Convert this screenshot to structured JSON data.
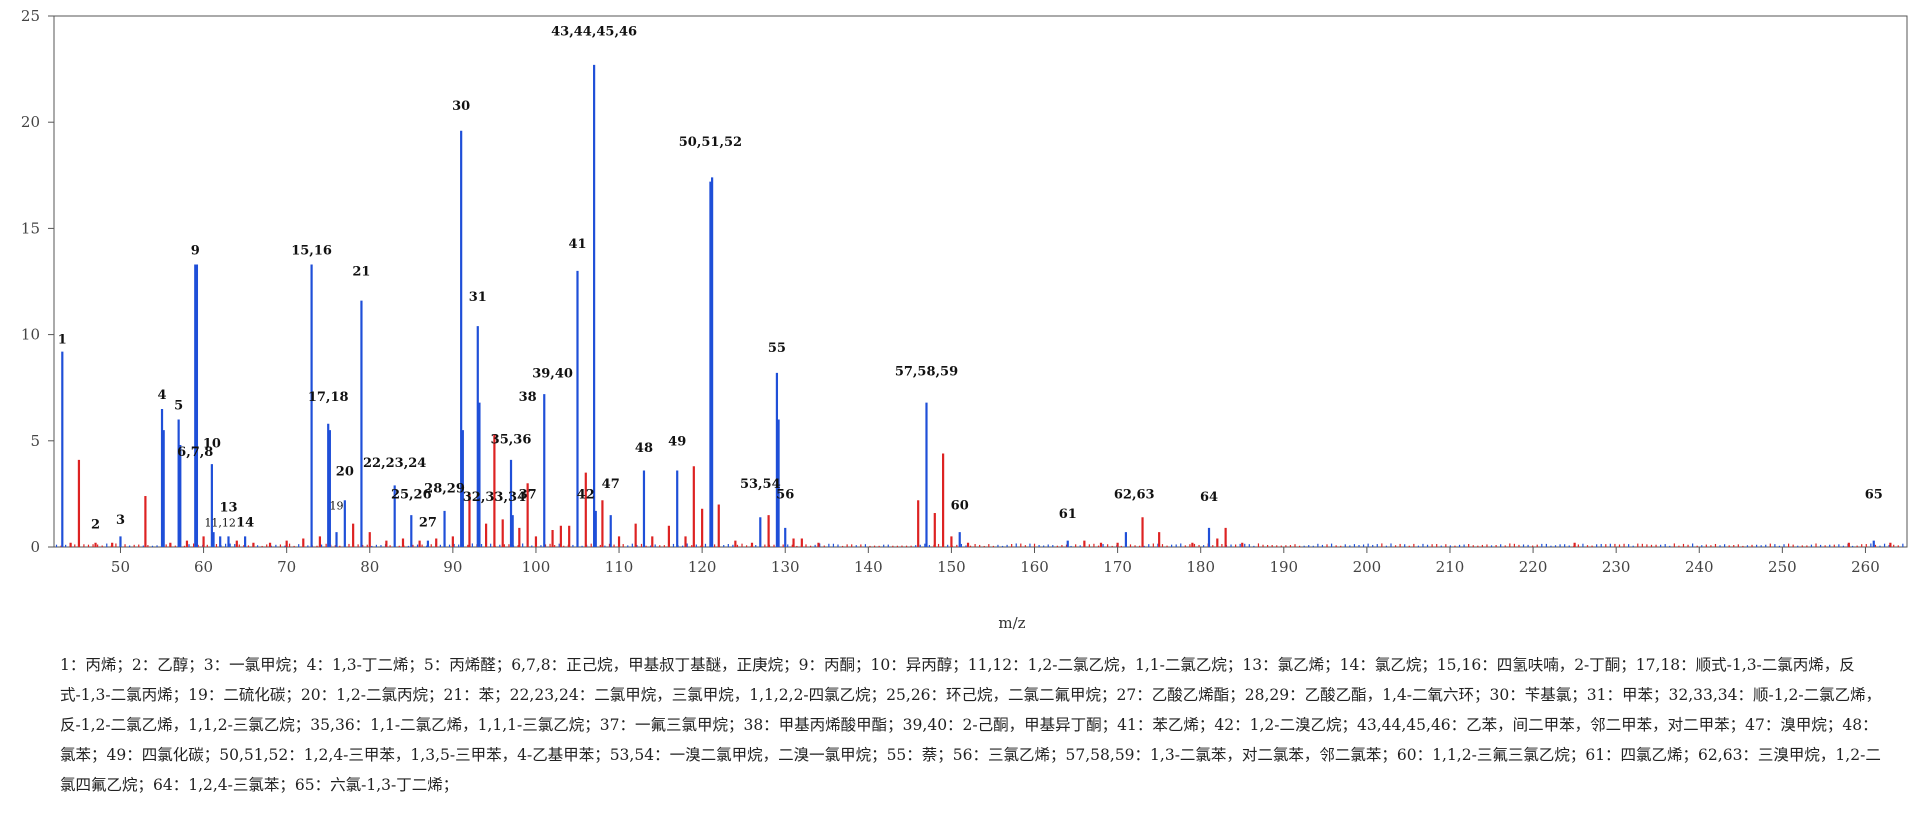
{
  "colors": {
    "blue": "#1f4fd8",
    "red": "#dd2222",
    "axis": "#555555",
    "text": "#111111"
  },
  "chart_data": {
    "type": "bar",
    "xlabel": "m/z",
    "ylabel": "",
    "xlim": [
      42,
      265
    ],
    "ylim": [
      0,
      25
    ],
    "x_ticks": [
      50,
      60,
      70,
      80,
      90,
      100,
      110,
      120,
      130,
      140,
      150,
      160,
      170,
      180,
      190,
      200,
      210,
      220,
      230,
      240,
      250,
      260
    ],
    "y_ticks": [
      0,
      5,
      10,
      15,
      20,
      25
    ],
    "grid": false,
    "series": [
      {
        "color": "#1f4fd8",
        "points": [
          [
            43,
            9.2
          ],
          [
            50,
            0.5
          ],
          [
            55,
            6.5
          ],
          [
            55.2,
            5.5
          ],
          [
            57,
            6.0
          ],
          [
            57.2,
            4.8
          ],
          [
            59,
            13.3
          ],
          [
            59.2,
            13.3
          ],
          [
            61,
            3.9
          ],
          [
            61.2,
            0.7
          ],
          [
            62,
            0.5
          ],
          [
            63,
            0.5
          ],
          [
            65,
            0.5
          ],
          [
            73,
            13.3
          ],
          [
            75,
            5.8
          ],
          [
            75.2,
            5.5
          ],
          [
            76,
            0.7
          ],
          [
            77,
            2.2
          ],
          [
            79,
            11.6
          ],
          [
            83,
            2.9
          ],
          [
            85,
            1.5
          ],
          [
            87,
            0.3
          ],
          [
            89,
            1.7
          ],
          [
            91,
            19.6
          ],
          [
            91.2,
            5.5
          ],
          [
            93,
            10.4
          ],
          [
            93.2,
            6.8
          ],
          [
            97,
            4.1
          ],
          [
            97.2,
            1.5
          ],
          [
            101,
            7.2
          ],
          [
            105,
            13.0
          ],
          [
            107,
            22.7
          ],
          [
            107.2,
            1.7
          ],
          [
            109,
            1.5
          ],
          [
            113,
            3.6
          ],
          [
            117,
            3.6
          ],
          [
            121,
            17.2
          ],
          [
            121.2,
            17.4
          ],
          [
            127,
            1.4
          ],
          [
            129,
            8.2
          ],
          [
            129.2,
            6.0
          ],
          [
            130,
            0.9
          ],
          [
            147,
            6.8
          ],
          [
            151,
            0.7
          ],
          [
            164,
            0.3
          ],
          [
            171,
            0.7
          ],
          [
            181,
            0.9
          ],
          [
            261,
            0.3
          ]
        ]
      },
      {
        "color": "#dd2222",
        "points": [
          [
            44,
            0.2
          ],
          [
            45,
            4.1
          ],
          [
            47,
            0.2
          ],
          [
            49,
            0.2
          ],
          [
            53,
            2.4
          ],
          [
            56,
            0.2
          ],
          [
            58,
            0.3
          ],
          [
            60,
            0.5
          ],
          [
            64,
            0.3
          ],
          [
            66,
            0.2
          ],
          [
            68,
            0.2
          ],
          [
            70,
            0.3
          ],
          [
            72,
            0.4
          ],
          [
            74,
            0.5
          ],
          [
            78,
            1.1
          ],
          [
            80,
            0.7
          ],
          [
            82,
            0.3
          ],
          [
            84,
            0.4
          ],
          [
            86,
            0.3
          ],
          [
            88,
            0.4
          ],
          [
            90,
            0.5
          ],
          [
            92,
            2.5
          ],
          [
            94,
            1.1
          ],
          [
            95,
            5.3
          ],
          [
            96,
            1.3
          ],
          [
            98,
            0.9
          ],
          [
            99,
            3.0
          ],
          [
            100,
            0.5
          ],
          [
            102,
            0.8
          ],
          [
            103,
            1.0
          ],
          [
            104,
            1.0
          ],
          [
            106,
            3.5
          ],
          [
            108,
            2.2
          ],
          [
            110,
            0.5
          ],
          [
            112,
            1.1
          ],
          [
            114,
            0.5
          ],
          [
            116,
            1.0
          ],
          [
            118,
            0.5
          ],
          [
            119,
            3.8
          ],
          [
            120,
            1.8
          ],
          [
            122,
            2.0
          ],
          [
            124,
            0.3
          ],
          [
            126,
            0.2
          ],
          [
            128,
            1.5
          ],
          [
            131,
            0.4
          ],
          [
            132,
            0.4
          ],
          [
            134,
            0.2
          ],
          [
            146,
            2.2
          ],
          [
            148,
            1.6
          ],
          [
            149,
            4.4
          ],
          [
            150,
            0.5
          ],
          [
            152,
            0.2
          ],
          [
            166,
            0.3
          ],
          [
            168,
            0.2
          ],
          [
            170,
            0.2
          ],
          [
            173,
            1.4
          ],
          [
            175,
            0.7
          ],
          [
            179,
            0.2
          ],
          [
            182,
            0.4
          ],
          [
            183,
            0.9
          ],
          [
            185,
            0.2
          ],
          [
            225,
            0.2
          ],
          [
            258,
            0.2
          ],
          [
            263,
            0.2
          ]
        ]
      }
    ],
    "annotations": [
      {
        "text": "1",
        "x": 43,
        "y": 9.2
      },
      {
        "text": "2",
        "x": 47,
        "y": 0.5
      },
      {
        "text": "3",
        "x": 50,
        "y": 0.7
      },
      {
        "text": "4",
        "x": 55,
        "y": 6.6
      },
      {
        "text": "5",
        "x": 57,
        "y": 6.1
      },
      {
        "text": "6,7,8",
        "x": 59,
        "y": 3.9
      },
      {
        "text": "9",
        "x": 59,
        "y": 13.4
      },
      {
        "text": "10",
        "x": 61,
        "y": 4.3
      },
      {
        "text": "11,12",
        "x": 62,
        "y": 0.6,
        "small": true
      },
      {
        "text": "13",
        "x": 63,
        "y": 1.3
      },
      {
        "text": "14",
        "x": 65,
        "y": 0.6
      },
      {
        "text": "15,16",
        "x": 73,
        "y": 13.4
      },
      {
        "text": "17,18",
        "x": 75,
        "y": 6.5
      },
      {
        "text": "19",
        "x": 76,
        "y": 1.4,
        "small": true
      },
      {
        "text": "20",
        "x": 77,
        "y": 3.0
      },
      {
        "text": "21",
        "x": 79,
        "y": 12.4
      },
      {
        "text": "22,23,24",
        "x": 83,
        "y": 3.4
      },
      {
        "text": "25,26",
        "x": 85,
        "y": 1.9
      },
      {
        "text": "27",
        "x": 87,
        "y": 0.6
      },
      {
        "text": "28,29",
        "x": 89,
        "y": 2.2
      },
      {
        "text": "30",
        "x": 91,
        "y": 20.2
      },
      {
        "text": "31",
        "x": 93,
        "y": 11.2
      },
      {
        "text": "32,33,34",
        "x": 95,
        "y": 1.8
      },
      {
        "text": "35,36",
        "x": 97,
        "y": 4.5
      },
      {
        "text": "37",
        "x": 99,
        "y": 1.9
      },
      {
        "text": "38",
        "x": 99,
        "y": 6.5
      },
      {
        "text": "39,40",
        "x": 102,
        "y": 7.6
      },
      {
        "text": "41",
        "x": 105,
        "y": 13.7
      },
      {
        "text": "42",
        "x": 106,
        "y": 1.9
      },
      {
        "text": "43,44,45,46",
        "x": 107,
        "y": 23.7
      },
      {
        "text": "47",
        "x": 109,
        "y": 2.4
      },
      {
        "text": "48",
        "x": 113,
        "y": 4.1
      },
      {
        "text": "49",
        "x": 117,
        "y": 4.4
      },
      {
        "text": "50,51,52",
        "x": 121,
        "y": 18.5
      },
      {
        "text": "53,54",
        "x": 127,
        "y": 2.4
      },
      {
        "text": "55",
        "x": 129,
        "y": 8.8
      },
      {
        "text": "56",
        "x": 130,
        "y": 1.9
      },
      {
        "text": "57,58,59",
        "x": 147,
        "y": 7.7
      },
      {
        "text": "60",
        "x": 151,
        "y": 1.4
      },
      {
        "text": "61",
        "x": 164,
        "y": 1.0
      },
      {
        "text": "62,63",
        "x": 172,
        "y": 1.9
      },
      {
        "text": "64",
        "x": 181,
        "y": 1.8
      },
      {
        "text": "65",
        "x": 261,
        "y": 1.9
      }
    ],
    "legend": "1：丙烯；2：乙醇；3：一氯甲烷；4：1,3-丁二烯；5：丙烯醛；6,7,8：正己烷，甲基叔丁基醚，正庚烷；9：丙酮；10：异丙醇；11,12：1,2-二氯乙烷，1,1-二氯乙烷；13：氯乙烯；14：氯乙烷；15,16：四氢呋喃，2-丁酮；17,18：顺式-1,3-二氯丙烯，反式-1,3-二氯丙烯；19：二硫化碳；20：1,2-二氯丙烷；21：苯；22,23,24：二氯甲烷，三氯甲烷，1,1,2,2-四氯乙烷；25,26：环己烷，二氯二氟甲烷；27：乙酸乙烯酯；28,29：乙酸乙酯，1,4-二氧六环；30：苄基氯；31：甲苯；32,33,34：顺-1,2-二氯乙烯，反-1,2-二氯乙烯，1,1,2-三氯乙烷；35,36：1,1-二氯乙烯，1,1,1-三氯乙烷；37：一氟三氯甲烷；38：甲基丙烯酸甲酯；39,40：2-己酮，甲基异丁酮；41：苯乙烯；42：1,2-二溴乙烷；43,44,45,46：乙苯，间二甲苯，邻二甲苯，对二甲苯；47：溴甲烷；48：氯苯；49：四氯化碳；50,51,52：1,2,4-三甲苯，1,3,5-三甲苯，4-乙基甲苯；53,54：一溴二氯甲烷，二溴一氯甲烷；55：萘；56：三氯乙烯；57,58,59：1,3-二氯苯，对二氯苯，邻二氯苯；60：1,1,2-三氟三氯乙烷；61：四氯乙烯；62,63：三溴甲烷，1,2-二氯四氟乙烷；64：1,2,4-三氯苯；65：六氯-1,3-丁二烯；"
  }
}
